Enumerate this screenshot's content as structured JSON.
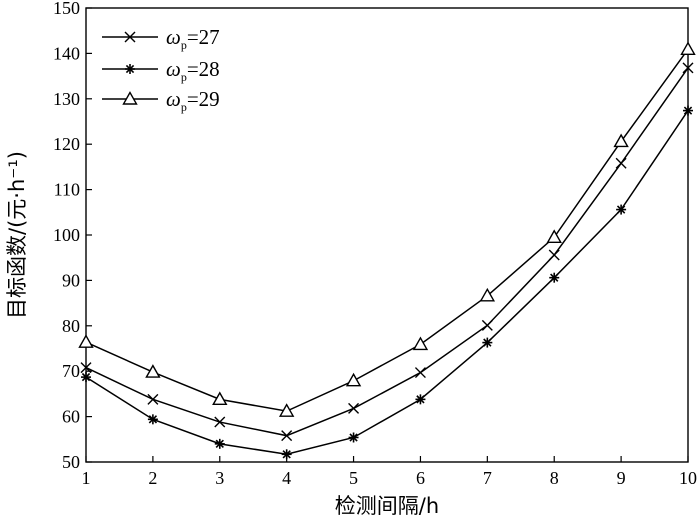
{
  "chart_data": {
    "type": "line",
    "xlabel": "检测间隔/h",
    "ylabel": "目标函数/(元·h⁻¹)",
    "xlim": [
      1,
      10
    ],
    "ylim": [
      50,
      150
    ],
    "x_ticks": [
      "1",
      "2",
      "3",
      "4",
      "5",
      "6",
      "7",
      "8",
      "9",
      "10"
    ],
    "y_ticks": [
      "50",
      "60",
      "70",
      "80",
      "90",
      "100",
      "110",
      "120",
      "130",
      "140",
      "150"
    ],
    "grid": false,
    "legend_position": "top-left",
    "x": [
      1,
      2,
      3,
      4,
      5,
      6,
      7,
      8,
      9,
      10
    ],
    "series": [
      {
        "name": "ω",
        "sub": "p",
        "eq": "=27",
        "marker": "x",
        "values": [
          70.8,
          63.8,
          58.8,
          55.8,
          61.8,
          69.7,
          80.1,
          95.6,
          115.8,
          136.8
        ]
      },
      {
        "name": "ω",
        "sub": "p",
        "eq": "=28",
        "marker": "asterisk",
        "values": [
          68.7,
          59.4,
          54.0,
          51.7,
          55.4,
          63.8,
          76.3,
          90.6,
          105.6,
          127.4
        ]
      },
      {
        "name": "ω",
        "sub": "p",
        "eq": "=29",
        "marker": "triangle",
        "values": [
          76.4,
          69.8,
          63.8,
          61.2,
          67.9,
          75.9,
          86.6,
          99.5,
          120.6,
          140.9
        ]
      }
    ]
  }
}
